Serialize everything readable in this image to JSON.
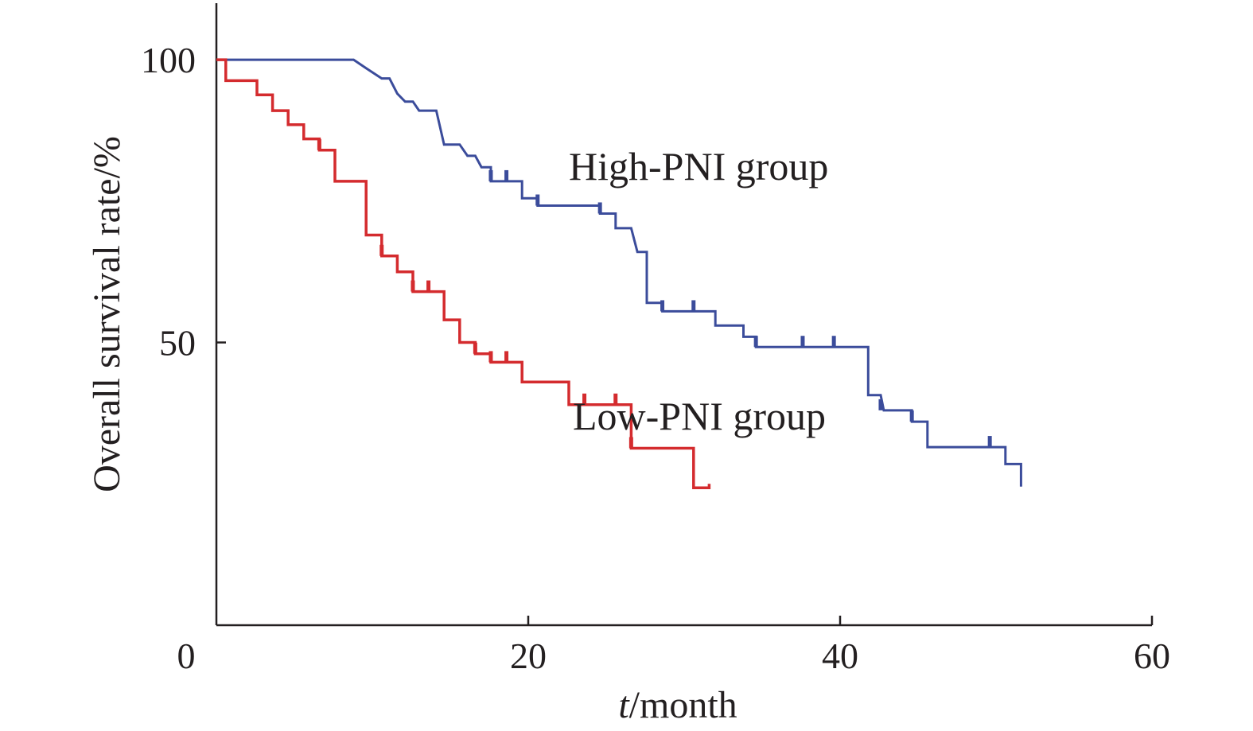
{
  "chart_data": {
    "type": "line",
    "subtype": "kaplan-meier step",
    "xlabel_italic": "t",
    "xlabel_rest": "/month",
    "ylabel": "Overall survival rate/%",
    "xlim": [
      0,
      60
    ],
    "ylim": [
      0,
      110
    ],
    "x_ticks": [
      "0",
      "20",
      "40",
      "60"
    ],
    "y_ticks": [
      "50",
      "100"
    ],
    "grid": false,
    "series": [
      {
        "name": "High-PNI group",
        "color": "#3b4c9b",
        "steps": [
          [
            0,
            100
          ],
          [
            8.8,
            100
          ],
          [
            9.6,
            98.5
          ],
          [
            10.6,
            96.7
          ],
          [
            11.1,
            96.7
          ],
          [
            11.6,
            94.0
          ],
          [
            12.1,
            92.6
          ],
          [
            12.6,
            92.6
          ],
          [
            13.0,
            91.0
          ],
          [
            14.1,
            91.0
          ],
          [
            14.6,
            85.0
          ],
          [
            15.6,
            85.0
          ],
          [
            16.1,
            83.0
          ],
          [
            16.6,
            83.0
          ],
          [
            17.0,
            81.0
          ],
          [
            17.6,
            81.0
          ],
          [
            17.6,
            78.5
          ],
          [
            19.6,
            78.5
          ],
          [
            19.6,
            75.5
          ],
          [
            20.6,
            75.5
          ],
          [
            20.6,
            74.2
          ],
          [
            24.6,
            74.2
          ],
          [
            24.6,
            72.8
          ],
          [
            25.6,
            72.8
          ],
          [
            25.6,
            70.2
          ],
          [
            26.6,
            70.2
          ],
          [
            27.0,
            66.0
          ],
          [
            27.6,
            66.0
          ],
          [
            27.6,
            57.0
          ],
          [
            28.6,
            57.0
          ],
          [
            28.6,
            55.5
          ],
          [
            32.0,
            55.5
          ],
          [
            32.0,
            53.0
          ],
          [
            33.8,
            53.0
          ],
          [
            33.8,
            51.0
          ],
          [
            34.6,
            51.0
          ],
          [
            34.6,
            49.2
          ],
          [
            41.8,
            49.2
          ],
          [
            41.8,
            40.7
          ],
          [
            42.6,
            40.7
          ],
          [
            42.8,
            38.0
          ],
          [
            44.6,
            38.0
          ],
          [
            44.6,
            36.0
          ],
          [
            45.6,
            36.0
          ],
          [
            45.6,
            31.5
          ],
          [
            50.6,
            31.5
          ],
          [
            50.6,
            28.5
          ],
          [
            51.6,
            28.5
          ],
          [
            51.6,
            24.5
          ]
        ],
        "censor_x": [
          17.6,
          18.6,
          20.6,
          24.6,
          28.6,
          30.6,
          34.6,
          37.6,
          39.6,
          42.6,
          44.6,
          49.6
        ],
        "censor_y": [
          78.5,
          78.5,
          74.2,
          72.8,
          55.5,
          55.5,
          49.2,
          49.2,
          49.2,
          38.0,
          36.0,
          31.5
        ]
      },
      {
        "name": "Low-PNI group",
        "color": "#d42b2e",
        "steps": [
          [
            0,
            100
          ],
          [
            0.6,
            100
          ],
          [
            0.6,
            96.3
          ],
          [
            2.6,
            96.3
          ],
          [
            2.6,
            93.8
          ],
          [
            3.6,
            93.8
          ],
          [
            3.6,
            91.0
          ],
          [
            4.6,
            91.0
          ],
          [
            4.6,
            88.5
          ],
          [
            5.6,
            88.5
          ],
          [
            5.6,
            86.0
          ],
          [
            6.6,
            86.0
          ],
          [
            6.6,
            84.0
          ],
          [
            7.6,
            84.0
          ],
          [
            7.6,
            78.5
          ],
          [
            9.6,
            78.5
          ],
          [
            9.6,
            69.0
          ],
          [
            10.6,
            69.0
          ],
          [
            10.6,
            65.3
          ],
          [
            11.6,
            65.3
          ],
          [
            11.6,
            62.5
          ],
          [
            12.6,
            62.5
          ],
          [
            12.6,
            59.0
          ],
          [
            14.6,
            59.0
          ],
          [
            14.6,
            54.0
          ],
          [
            15.6,
            54.0
          ],
          [
            15.6,
            50.0
          ],
          [
            16.6,
            50.0
          ],
          [
            16.6,
            48.0
          ],
          [
            17.6,
            48.0
          ],
          [
            17.6,
            46.5
          ],
          [
            19.6,
            46.5
          ],
          [
            19.6,
            43.0
          ],
          [
            22.6,
            43.0
          ],
          [
            22.6,
            39.0
          ],
          [
            26.6,
            39.0
          ],
          [
            26.6,
            31.3
          ],
          [
            30.6,
            31.3
          ],
          [
            30.6,
            24.3
          ],
          [
            31.6,
            24.3
          ],
          [
            31.6,
            25.0
          ]
        ],
        "censor_x": [
          6.6,
          10.6,
          12.6,
          13.6,
          16.6,
          17.6,
          18.6,
          23.6,
          25.6,
          26.6
        ],
        "censor_y": [
          84.0,
          65.3,
          59.0,
          59.0,
          48.0,
          46.5,
          46.5,
          39.0,
          39.0,
          31.3
        ]
      }
    ]
  }
}
